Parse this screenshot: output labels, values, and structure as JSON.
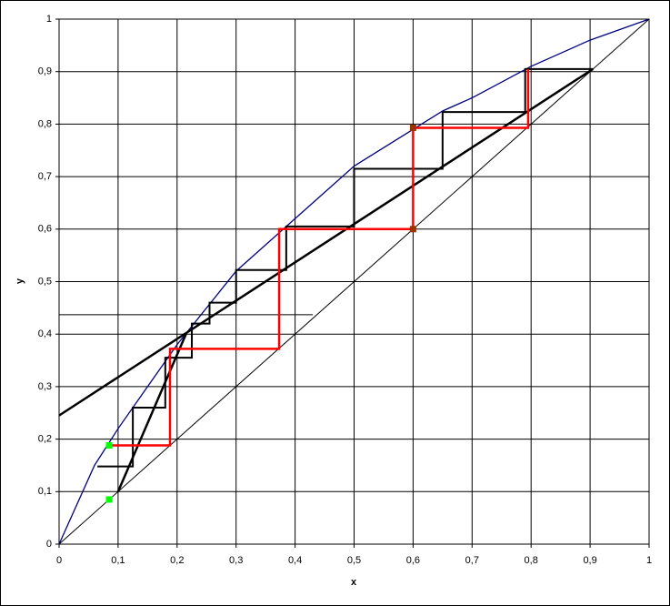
{
  "chart_data": {
    "type": "line",
    "xlabel": "x",
    "ylabel": "y",
    "xlim": [
      0,
      1
    ],
    "ylim": [
      0,
      1
    ],
    "grid": true,
    "xticks": [
      0,
      {
        "value": 0.1,
        "label": "0,1"
      },
      {
        "value": 0.2,
        "label": "0,2"
      },
      {
        "value": 0.3,
        "label": "0,3"
      },
      {
        "value": 0.4,
        "label": "0,4"
      },
      {
        "value": 0.5,
        "label": "0,5"
      },
      {
        "value": 0.6,
        "label": "0,6"
      },
      {
        "value": 0.7,
        "label": "0,7"
      },
      {
        "value": 0.8,
        "label": "0,8"
      },
      {
        "value": 0.9,
        "label": "0,9"
      },
      1
    ],
    "yticks": [
      0,
      {
        "value": 0.1,
        "label": "0,1"
      },
      {
        "value": 0.2,
        "label": "0,2"
      },
      {
        "value": 0.3,
        "label": "0,3"
      },
      {
        "value": 0.4,
        "label": "0,4"
      },
      {
        "value": 0.5,
        "label": "0,5"
      },
      {
        "value": 0.6,
        "label": "0,6"
      },
      {
        "value": 0.7,
        "label": "0,7"
      },
      {
        "value": 0.8,
        "label": "0,8"
      },
      {
        "value": 0.9,
        "label": "0,9"
      },
      1
    ],
    "series": [
      {
        "color": "#000080",
        "width": 1.3,
        "style": "line",
        "x": [
          0,
          0.06,
          0.1,
          0.15,
          0.2,
          0.3,
          0.4,
          0.5,
          0.6,
          0.65,
          0.7,
          0.8,
          0.9,
          1
        ],
        "values": [
          0,
          0.15,
          0.22,
          0.3,
          0.38,
          0.52,
          0.62,
          0.72,
          0.79,
          0.825,
          0.85,
          0.91,
          0.96,
          1
        ]
      },
      {
        "color": "#000000",
        "width": 1,
        "style": "line",
        "x": [
          0,
          1
        ],
        "values": [
          0,
          1
        ]
      },
      {
        "color": "#000000",
        "width": 2.5,
        "style": "line",
        "x": [
          0,
          0.905
        ],
        "values": [
          0.245,
          0.905
        ]
      },
      {
        "color": "#000000",
        "width": 2.5,
        "style": "line",
        "x": [
          0.1,
          0.215
        ],
        "values": [
          0.1,
          0.4
        ]
      },
      {
        "color": "#000000",
        "width": 1,
        "style": "line",
        "x": [
          0,
          0.43
        ],
        "values": [
          0.437,
          0.437
        ]
      },
      {
        "color": "#000000",
        "width": 2,
        "style": "line",
        "x": [
          0.905,
          0.79,
          0.79,
          0.65,
          0.65,
          0.5,
          0.5,
          0.385,
          0.385,
          0.3,
          0.3,
          0.255,
          0.255,
          0.225,
          0.225,
          0.18,
          0.18,
          0.125,
          0.125,
          0.065
        ],
        "values": [
          0.905,
          0.905,
          0.823,
          0.823,
          0.715,
          0.715,
          0.605,
          0.605,
          0.522,
          0.522,
          0.46,
          0.46,
          0.42,
          0.42,
          0.355,
          0.355,
          0.26,
          0.26,
          0.148,
          0.148
        ]
      },
      {
        "color": "#ff0000",
        "width": 2.5,
        "style": "line",
        "x": [
          0.795,
          0.795,
          0.6,
          0.6,
          0.373,
          0.373,
          0.188,
          0.188,
          0.085
        ],
        "values": [
          0.905,
          0.793,
          0.793,
          0.6,
          0.6,
          0.372,
          0.372,
          0.188,
          0.188
        ]
      },
      {
        "color": "#993300",
        "style": "points",
        "x": [
          0.6,
          0.6
        ],
        "values": [
          0.793,
          0.6
        ]
      },
      {
        "color": "#00ff00",
        "style": "points",
        "x": [
          0.085,
          0.085
        ],
        "values": [
          0.188,
          0.085
        ]
      }
    ]
  }
}
